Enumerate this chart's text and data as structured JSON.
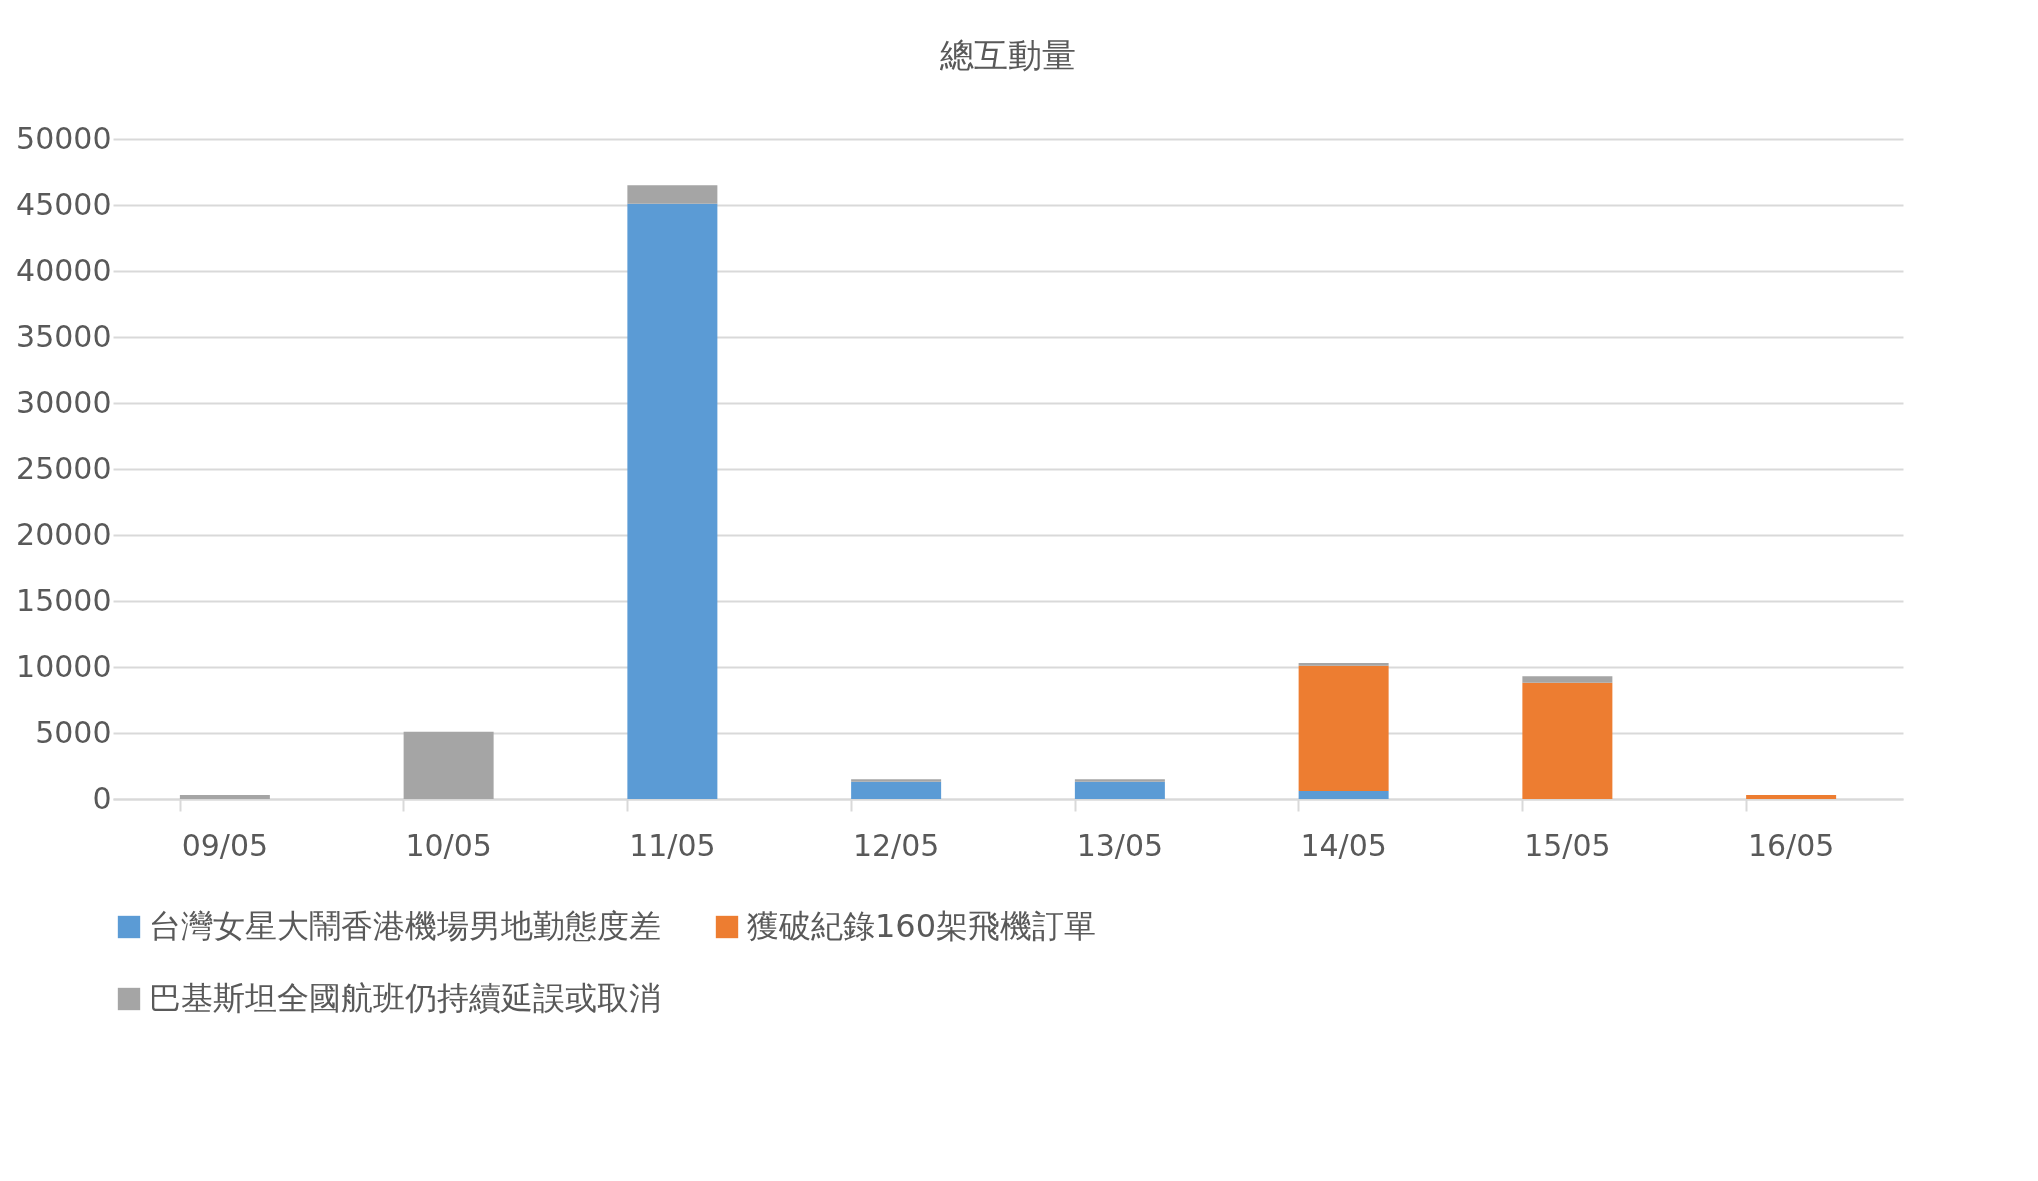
{
  "chart_data": {
    "type": "bar",
    "stacked": true,
    "title": "總互動量",
    "categories": [
      "09/05",
      "10/05",
      "11/05",
      "12/05",
      "13/05",
      "14/05",
      "15/05",
      "16/05"
    ],
    "series": [
      {
        "name": "台灣女星大鬧香港機場男地勤態度差",
        "color": "#5b9bd5",
        "values": [
          0,
          0,
          45100,
          1300,
          1300,
          600,
          0,
          0
        ]
      },
      {
        "name": "獲破紀錄160架飛機訂單",
        "color": "#ed7d31",
        "values": [
          0,
          0,
          0,
          0,
          0,
          9500,
          8800,
          300
        ]
      },
      {
        "name": "巴基斯坦全國航班仍持續延誤或取消",
        "color": "#a5a5a5",
        "values": [
          300,
          5100,
          1400,
          200,
          200,
          200,
          500,
          0
        ]
      }
    ],
    "ylim": [
      0,
      50000
    ],
    "yticks": [
      0,
      5000,
      10000,
      15000,
      20000,
      25000,
      30000,
      35000,
      40000,
      45000,
      50000
    ],
    "grid": "y",
    "legend": "bottom"
  }
}
